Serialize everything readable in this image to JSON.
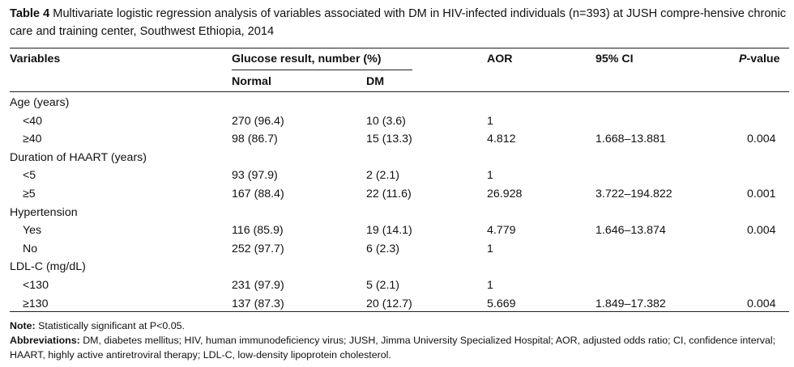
{
  "caption": {
    "label": "Table 4",
    "text": "Multivariate logistic regression analysis of variables associated with DM in HIV-infected individuals (n=393) at JUSH compre-hensive chronic care and training center, Southwest Ethiopia, 2014"
  },
  "header": {
    "variables": "Variables",
    "glucose": "Glucose result, number (%)",
    "normal": "Normal",
    "dm": "DM",
    "aor": "AOR",
    "ci": "95% CI",
    "p_italic": "P",
    "p_rest": "-value"
  },
  "rows": [
    {
      "var": "Age (years)",
      "group": true,
      "normal": "",
      "dm": "",
      "aor": "",
      "ci": "",
      "p": ""
    },
    {
      "var": "<40",
      "group": false,
      "normal": "270 (96.4)",
      "dm": "10 (3.6)",
      "aor": "1",
      "ci": "",
      "p": ""
    },
    {
      "var": "≥40",
      "group": false,
      "normal": "98 (86.7)",
      "dm": "15 (13.3)",
      "aor": "4.812",
      "ci": "1.668–13.881",
      "p": "0.004"
    },
    {
      "var": "Duration of HAART (years)",
      "group": true,
      "normal": "",
      "dm": "",
      "aor": "",
      "ci": "",
      "p": ""
    },
    {
      "var": "<5",
      "group": false,
      "normal": "93 (97.9)",
      "dm": "2 (2.1)",
      "aor": "1",
      "ci": "",
      "p": ""
    },
    {
      "var": "≥5",
      "group": false,
      "normal": "167 (88.4)",
      "dm": "22 (11.6)",
      "aor": "26.928",
      "ci": "3.722–194.822",
      "p": "0.001"
    },
    {
      "var": "Hypertension",
      "group": true,
      "normal": "",
      "dm": "",
      "aor": "",
      "ci": "",
      "p": ""
    },
    {
      "var": "Yes",
      "group": false,
      "normal": "116 (85.9)",
      "dm": "19 (14.1)",
      "aor": "4.779",
      "ci": "1.646–13.874",
      "p": "0.004"
    },
    {
      "var": "No",
      "group": false,
      "normal": "252 (97.7)",
      "dm": "6 (2.3)",
      "aor": "1",
      "ci": "",
      "p": ""
    },
    {
      "var": "LDL-C (mg/dL)",
      "group": true,
      "normal": "",
      "dm": "",
      "aor": "",
      "ci": "",
      "p": ""
    },
    {
      "var": "<130",
      "group": false,
      "normal": "231 (97.9)",
      "dm": "5 (2.1)",
      "aor": "1",
      "ci": "",
      "p": ""
    },
    {
      "var": "≥130",
      "group": false,
      "normal": "137 (87.3)",
      "dm": "20 (12.7)",
      "aor": "5.669",
      "ci": "1.849–17.382",
      "p": "0.004"
    }
  ],
  "notes": {
    "note_label": "Note:",
    "note_text": "Statistically significant at P<0.05.",
    "abbr_label": "Abbreviations:",
    "abbr_text": "DM, diabetes mellitus; HIV, human immunodeficiency virus; JUSH, Jimma University Specialized Hospital; AOR, adjusted odds ratio; CI, confidence interval; HAART, highly active antiretroviral therapy; LDL-C, low-density lipoprotein cholesterol."
  }
}
